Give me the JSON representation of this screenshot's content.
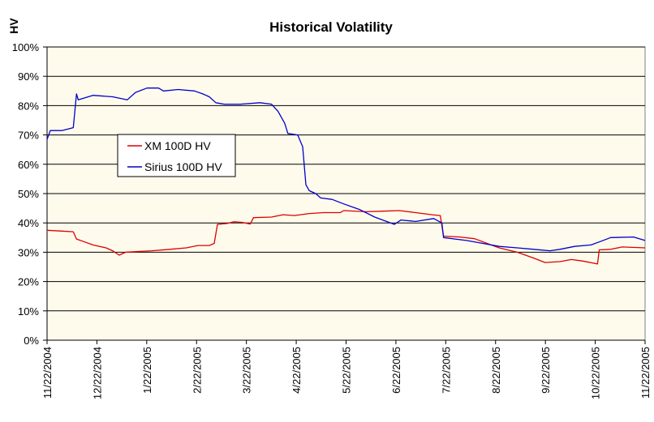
{
  "chart_data": {
    "type": "line",
    "title": "Historical Volatility",
    "ylabel": "HV",
    "xlabel": "",
    "ylim": [
      0,
      100
    ],
    "y_ticks": [
      "0%",
      "10%",
      "20%",
      "30%",
      "40%",
      "50%",
      "60%",
      "70%",
      "80%",
      "90%",
      "100%"
    ],
    "x_start": "2004-11-22",
    "x_end": "2005-11-22",
    "x_ticks": [
      "11/22/2004",
      "12/22/2004",
      "1/22/2005",
      "2/22/2005",
      "3/22/2005",
      "4/22/2005",
      "5/22/2005",
      "6/22/2005",
      "7/22/2005",
      "8/22/2005",
      "9/22/2005",
      "10/22/2005",
      "11/22/2005"
    ],
    "grid": true,
    "legend_position": "left-middle",
    "colors": {
      "plot_bg": "#fffbec",
      "xm": "#dd0000",
      "sirius": "#0000cc",
      "grid": "#000000"
    },
    "series": [
      {
        "name": "XM 100D HV",
        "color": "#dd0000",
        "points": [
          [
            "2004-11-22",
            37.5
          ],
          [
            "2004-12-01",
            37.2
          ],
          [
            "2004-12-08",
            37.0
          ],
          [
            "2004-12-10",
            34.5
          ],
          [
            "2004-12-15",
            33.5
          ],
          [
            "2004-12-20",
            32.5
          ],
          [
            "2004-12-28",
            31.5
          ],
          [
            "2005-01-01",
            30.5
          ],
          [
            "2005-01-05",
            29.0
          ],
          [
            "2005-01-09",
            30.0
          ],
          [
            "2005-01-15",
            30.2
          ],
          [
            "2005-01-25",
            30.5
          ],
          [
            "2005-02-05",
            31.0
          ],
          [
            "2005-02-15",
            31.5
          ],
          [
            "2005-02-22",
            32.3
          ],
          [
            "2005-03-01",
            32.3
          ],
          [
            "2005-03-04",
            33.0
          ],
          [
            "2005-03-06",
            39.5
          ],
          [
            "2005-03-12",
            39.8
          ],
          [
            "2005-03-16",
            40.4
          ],
          [
            "2005-03-21",
            40.2
          ],
          [
            "2005-03-26",
            39.6
          ],
          [
            "2005-03-28",
            41.8
          ],
          [
            "2005-04-08",
            42.0
          ],
          [
            "2005-04-15",
            42.8
          ],
          [
            "2005-04-22",
            42.5
          ],
          [
            "2005-05-01",
            43.2
          ],
          [
            "2005-05-10",
            43.5
          ],
          [
            "2005-05-20",
            43.5
          ],
          [
            "2005-05-22",
            44.2
          ],
          [
            "2005-06-05",
            43.8
          ],
          [
            "2005-06-15",
            44.0
          ],
          [
            "2005-06-25",
            44.2
          ],
          [
            "2005-07-05",
            43.5
          ],
          [
            "2005-07-15",
            42.8
          ],
          [
            "2005-07-20",
            42.5
          ],
          [
            "2005-07-22",
            35.5
          ],
          [
            "2005-08-01",
            35.2
          ],
          [
            "2005-08-10",
            34.6
          ],
          [
            "2005-08-20",
            32.5
          ],
          [
            "2005-08-25",
            31.5
          ],
          [
            "2005-09-05",
            30.0
          ],
          [
            "2005-09-15",
            28.0
          ],
          [
            "2005-09-22",
            26.5
          ],
          [
            "2005-10-01",
            26.8
          ],
          [
            "2005-10-08",
            27.5
          ],
          [
            "2005-10-15",
            27.0
          ],
          [
            "2005-10-24",
            26.0
          ],
          [
            "2005-10-25",
            30.8
          ],
          [
            "2005-11-01",
            31.0
          ],
          [
            "2005-11-08",
            31.8
          ],
          [
            "2005-11-22",
            31.5
          ]
        ]
      },
      {
        "name": "Sirius 100D HV",
        "color": "#0000cc",
        "points": [
          [
            "2004-11-22",
            68.5
          ],
          [
            "2004-11-24",
            71.5
          ],
          [
            "2004-12-01",
            71.5
          ],
          [
            "2004-12-08",
            72.5
          ],
          [
            "2004-12-10",
            84.0
          ],
          [
            "2004-12-11",
            82.0
          ],
          [
            "2004-12-20",
            83.5
          ],
          [
            "2005-01-01",
            83.0
          ],
          [
            "2005-01-10",
            82.0
          ],
          [
            "2005-01-15",
            84.5
          ],
          [
            "2005-01-22",
            86.0
          ],
          [
            "2005-01-29",
            86.0
          ],
          [
            "2005-02-01",
            85.0
          ],
          [
            "2005-02-10",
            85.5
          ],
          [
            "2005-02-20",
            85.0
          ],
          [
            "2005-02-25",
            84.0
          ],
          [
            "2005-03-01",
            83.0
          ],
          [
            "2005-03-05",
            81.0
          ],
          [
            "2005-03-10",
            80.5
          ],
          [
            "2005-03-20",
            80.5
          ],
          [
            "2005-04-01",
            81.0
          ],
          [
            "2005-04-08",
            80.5
          ],
          [
            "2005-04-12",
            78.0
          ],
          [
            "2005-04-16",
            74.0
          ],
          [
            "2005-04-18",
            70.5
          ],
          [
            "2005-04-24",
            70.0
          ],
          [
            "2005-04-27",
            66.0
          ],
          [
            "2005-04-29",
            53.0
          ],
          [
            "2005-05-01",
            51.0
          ],
          [
            "2005-05-05",
            50.0
          ],
          [
            "2005-05-08",
            48.5
          ],
          [
            "2005-05-15",
            48.0
          ],
          [
            "2005-05-22",
            46.5
          ],
          [
            "2005-06-01",
            44.5
          ],
          [
            "2005-06-10",
            42.0
          ],
          [
            "2005-06-22",
            39.5
          ],
          [
            "2005-06-26",
            41.0
          ],
          [
            "2005-07-05",
            40.5
          ],
          [
            "2005-07-16",
            41.5
          ],
          [
            "2005-07-21",
            40.0
          ],
          [
            "2005-07-22",
            35.0
          ],
          [
            "2005-08-05",
            34.0
          ],
          [
            "2005-08-15",
            33.0
          ],
          [
            "2005-08-25",
            32.0
          ],
          [
            "2005-09-05",
            31.5
          ],
          [
            "2005-09-15",
            31.0
          ],
          [
            "2005-09-25",
            30.5
          ],
          [
            "2005-10-01",
            31.0
          ],
          [
            "2005-10-10",
            32.0
          ],
          [
            "2005-10-20",
            32.5
          ],
          [
            "2005-10-25",
            33.5
          ],
          [
            "2005-11-01",
            35.0
          ],
          [
            "2005-11-15",
            35.2
          ],
          [
            "2005-11-22",
            34.0
          ]
        ]
      }
    ]
  }
}
